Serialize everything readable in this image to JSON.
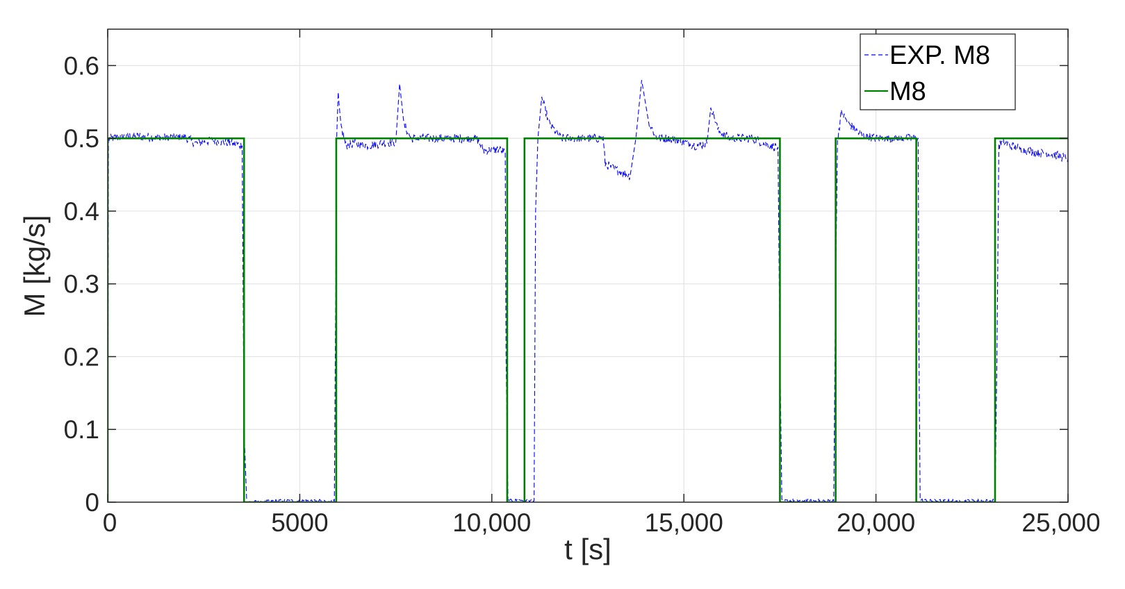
{
  "chart_data": {
    "type": "line",
    "title": "",
    "xlabel": "t [s]",
    "ylabel": "M [kg/s]",
    "xlim": [
      0,
      25000
    ],
    "ylim": [
      0,
      0.65
    ],
    "x_ticks": [
      0,
      5000,
      10000,
      15000,
      20000,
      25000
    ],
    "x_tick_labels": [
      "0",
      "5000",
      "10,000",
      "15,000",
      "20,000",
      "25,000"
    ],
    "y_ticks": [
      0,
      0.1,
      0.2,
      0.3,
      0.4,
      0.5,
      0.6
    ],
    "y_tick_labels": [
      "0",
      "0.1",
      "0.2",
      "0.3",
      "0.4",
      "0.5",
      "0.6"
    ],
    "grid": true,
    "legend_position": "top-right",
    "series": [
      {
        "name": "EXP. M8",
        "style": "dashed",
        "color": "#0000ff",
        "x": [
          0,
          20,
          60,
          500,
          1000,
          1500,
          2000,
          2300,
          2700,
          3200,
          3500,
          3550,
          3620,
          4500,
          5500,
          5900,
          5960,
          6000,
          6060,
          6200,
          6400,
          6800,
          7200,
          7500,
          7600,
          7700,
          7900,
          8300,
          8800,
          9300,
          9600,
          9800,
          10200,
          10350,
          10370,
          10420,
          10800,
          11100,
          11140,
          11200,
          11300,
          11500,
          11800,
          12200,
          12600,
          12900,
          12950,
          13300,
          13600,
          13750,
          13900,
          14100,
          14300,
          14600,
          15000,
          15300,
          15600,
          15700,
          15900,
          16200,
          16600,
          16800,
          17200,
          17450,
          17500,
          17550,
          18200,
          18900,
          18950,
          19000,
          19100,
          19300,
          19600,
          20000,
          20500,
          21000,
          21100,
          21120,
          21150,
          21400,
          22000,
          23000,
          23100,
          23150,
          23200,
          23300,
          23500,
          23800,
          24200,
          24600,
          25000
        ],
        "y": [
          0,
          0.5,
          0.5,
          0.503,
          0.502,
          0.501,
          0.502,
          0.493,
          0.497,
          0.494,
          0.49,
          0.1,
          0,
          0.002,
          0.002,
          0.001,
          0.5,
          0.56,
          0.52,
          0.49,
          0.493,
          0.49,
          0.494,
          0.495,
          0.575,
          0.52,
          0.5,
          0.5,
          0.5,
          0.5,
          0.5,
          0.483,
          0.485,
          0.48,
          0.2,
          0.002,
          0.003,
          0.002,
          0.4,
          0.5,
          0.555,
          0.52,
          0.5,
          0.5,
          0.5,
          0.5,
          0.465,
          0.455,
          0.448,
          0.5,
          0.58,
          0.52,
          0.5,
          0.5,
          0.495,
          0.49,
          0.493,
          0.545,
          0.51,
          0.5,
          0.5,
          0.5,
          0.49,
          0.488,
          0.2,
          0.002,
          0.002,
          0.002,
          0.3,
          0.5,
          0.535,
          0.52,
          0.505,
          0.5,
          0.5,
          0.5,
          0.5,
          0.2,
          0.003,
          0.002,
          0.002,
          0.002,
          0.002,
          0.2,
          0.49,
          0.495,
          0.49,
          0.485,
          0.48,
          0.478,
          0.472
        ]
      },
      {
        "name": "M8",
        "style": "solid",
        "color": "#008000",
        "x": [
          0,
          0,
          3550,
          3550,
          5950,
          5950,
          10400,
          10400,
          10850,
          10850,
          17500,
          17500,
          18950,
          18950,
          21050,
          21050,
          23100,
          23100,
          25000
        ],
        "y": [
          0,
          0.5,
          0.5,
          0,
          0,
          0.5,
          0.5,
          0,
          0,
          0.5,
          0.5,
          0,
          0,
          0.5,
          0.5,
          0,
          0,
          0.5,
          0.5
        ]
      }
    ]
  }
}
